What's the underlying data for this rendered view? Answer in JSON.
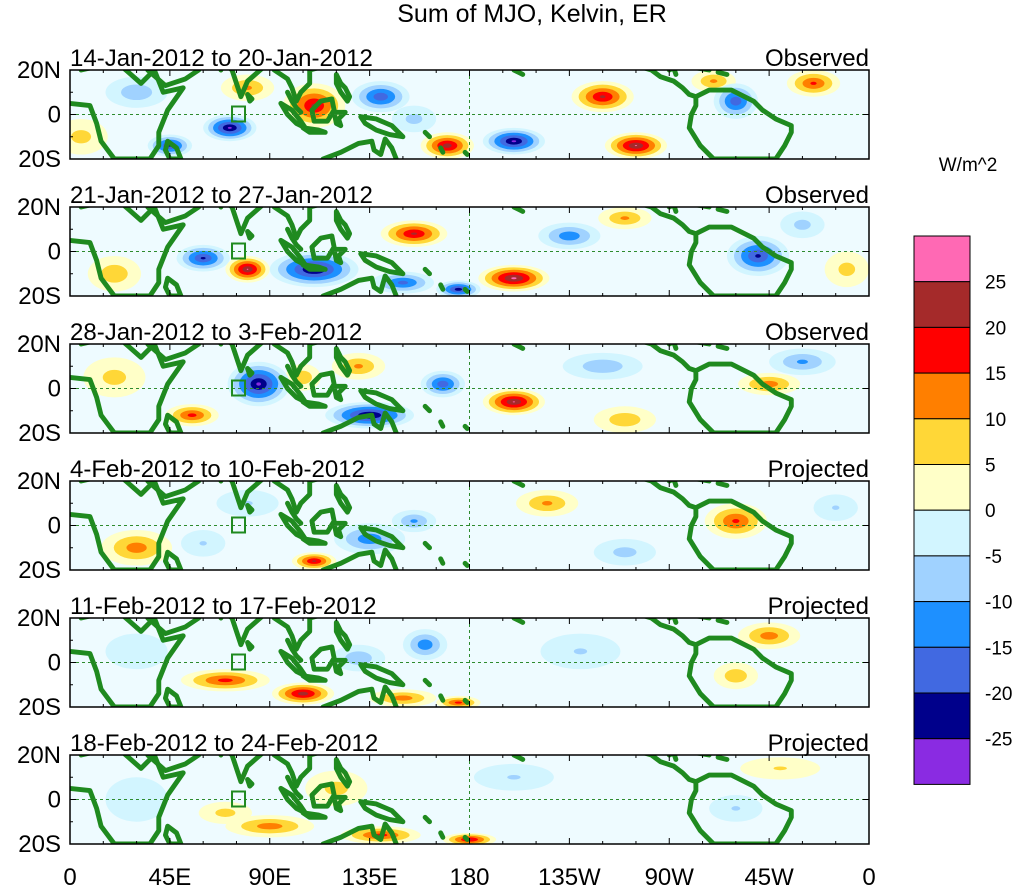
{
  "title": "Sum of MJO, Kelvin, ER",
  "units": "W/m^2",
  "lat_labels": [
    "20N",
    "0",
    "20S"
  ],
  "lon_labels": [
    "0",
    "45E",
    "90E",
    "135E",
    "180",
    "135W",
    "90W",
    "45W",
    "0"
  ],
  "panels": [
    {
      "dates": "14-Jan-2012 to 20-Jan-2012",
      "kind": "Observed"
    },
    {
      "dates": "21-Jan-2012 to 27-Jan-2012",
      "kind": "Observed"
    },
    {
      "dates": "28-Jan-2012 to 3-Feb-2012",
      "kind": "Observed"
    },
    {
      "dates": "4-Feb-2012 to 10-Feb-2012",
      "kind": "Projected"
    },
    {
      "dates": "11-Feb-2012 to 17-Feb-2012",
      "kind": "Projected"
    },
    {
      "dates": "18-Feb-2012 to 24-Feb-2012",
      "kind": "Projected"
    }
  ],
  "colorbar": {
    "levels": [
      "25",
      "20",
      "15",
      "10",
      "5",
      "0",
      "-5",
      "-10",
      "-15",
      "-20",
      "-25"
    ],
    "colors": [
      "#ff69b4",
      "#a52a2a",
      "#ff0000",
      "#ff7f00",
      "#ffd737",
      "#ffffc8",
      "#d2f5ff",
      "#a0d2ff",
      "#1e90ff",
      "#4169e1",
      "#00008b",
      "#8a2be2"
    ]
  },
  "map_style": {
    "land_color": "#1f8a1f",
    "equator_color": "#2e8b2e",
    "dateline_color": "#2e8b2e"
  },
  "blobs": [
    [
      {
        "lon": 240,
        "lat": 8,
        "sx": 14,
        "sy": 7,
        "v": 22
      },
      {
        "lon": 255,
        "lat": -14,
        "sx": 14,
        "sy": 6,
        "v": 26
      },
      {
        "lon": 200,
        "lat": -12,
        "sx": 14,
        "sy": 6,
        "v": -27
      },
      {
        "lon": 170,
        "lat": -14,
        "sx": 12,
        "sy": 6,
        "v": 24
      },
      {
        "lon": 140,
        "lat": 8,
        "sx": 13,
        "sy": 7,
        "v": -20
      },
      {
        "lon": 110,
        "lat": 4,
        "sx": 14,
        "sy": 10,
        "v": 22
      },
      {
        "lon": 72,
        "lat": -6,
        "sx": 12,
        "sy": 6,
        "v": -27
      },
      {
        "lon": 45,
        "lat": -14,
        "sx": 10,
        "sy": 5,
        "v": -22
      },
      {
        "lon": 80,
        "lat": 12,
        "sx": 12,
        "sy": 6,
        "v": 12
      },
      {
        "lon": 30,
        "lat": 10,
        "sx": 14,
        "sy": 7,
        "v": -10
      },
      {
        "lon": 300,
        "lat": 6,
        "sx": 10,
        "sy": 8,
        "v": -20
      },
      {
        "lon": 335,
        "lat": 14,
        "sx": 12,
        "sy": 6,
        "v": 17
      },
      {
        "lon": 290,
        "lat": 15,
        "sx": 10,
        "sy": 5,
        "v": 12
      },
      {
        "lon": 155,
        "lat": -2,
        "sx": 10,
        "sy": 6,
        "v": -8
      },
      {
        "lon": 5,
        "lat": -10,
        "sx": 12,
        "sy": 8,
        "v": 8
      }
    ],
    [
      {
        "lon": 110,
        "lat": -8,
        "sx": 20,
        "sy": 8,
        "v": -27
      },
      {
        "lon": 155,
        "lat": 8,
        "sx": 15,
        "sy": 6,
        "v": 22
      },
      {
        "lon": 200,
        "lat": -12,
        "sx": 16,
        "sy": 6,
        "v": 27
      },
      {
        "lon": 80,
        "lat": -8,
        "sx": 10,
        "sy": 6,
        "v": 26
      },
      {
        "lon": 60,
        "lat": -3,
        "sx": 12,
        "sy": 6,
        "v": -22
      },
      {
        "lon": 150,
        "lat": -14,
        "sx": 14,
        "sy": 5,
        "v": -18
      },
      {
        "lon": 175,
        "lat": -17,
        "sx": 10,
        "sy": 4,
        "v": -24
      },
      {
        "lon": 310,
        "lat": -2,
        "sx": 14,
        "sy": 9,
        "v": -22
      },
      {
        "lon": 225,
        "lat": 7,
        "sx": 14,
        "sy": 6,
        "v": -15
      },
      {
        "lon": 250,
        "lat": 15,
        "sx": 12,
        "sy": 5,
        "v": 12
      },
      {
        "lon": 20,
        "lat": -10,
        "sx": 12,
        "sy": 8,
        "v": 10
      },
      {
        "lon": 330,
        "lat": 12,
        "sx": 10,
        "sy": 6,
        "v": -8
      },
      {
        "lon": 350,
        "lat": -8,
        "sx": 10,
        "sy": 8,
        "v": 8
      }
    ],
    [
      {
        "lon": 85,
        "lat": 2,
        "sx": 14,
        "sy": 10,
        "v": -27
      },
      {
        "lon": 135,
        "lat": -12,
        "sx": 20,
        "sy": 6,
        "v": -27
      },
      {
        "lon": 200,
        "lat": -6,
        "sx": 14,
        "sy": 6,
        "v": 26
      },
      {
        "lon": 55,
        "lat": -12,
        "sx": 12,
        "sy": 5,
        "v": 18
      },
      {
        "lon": 168,
        "lat": 2,
        "sx": 10,
        "sy": 6,
        "v": -20
      },
      {
        "lon": 130,
        "lat": 10,
        "sx": 12,
        "sy": 6,
        "v": 12
      },
      {
        "lon": 240,
        "lat": 10,
        "sx": 18,
        "sy": 6,
        "v": -10
      },
      {
        "lon": 315,
        "lat": 2,
        "sx": 14,
        "sy": 5,
        "v": 14
      },
      {
        "lon": 330,
        "lat": 12,
        "sx": 15,
        "sy": 6,
        "v": -12
      },
      {
        "lon": 20,
        "lat": 5,
        "sx": 14,
        "sy": 9,
        "v": 8
      },
      {
        "lon": 250,
        "lat": -14,
        "sx": 14,
        "sy": 6,
        "v": 10
      },
      {
        "lon": 105,
        "lat": 5,
        "sx": 8,
        "sy": 6,
        "v": 10
      }
    ],
    [
      {
        "lon": 30,
        "lat": -10,
        "sx": 16,
        "sy": 8,
        "v": 14
      },
      {
        "lon": 110,
        "lat": -16,
        "sx": 10,
        "sy": 4,
        "v": 22
      },
      {
        "lon": 135,
        "lat": -6,
        "sx": 16,
        "sy": 7,
        "v": -15
      },
      {
        "lon": 155,
        "lat": 2,
        "sx": 10,
        "sy": 5,
        "v": -12
      },
      {
        "lon": 215,
        "lat": 10,
        "sx": 14,
        "sy": 6,
        "v": 12
      },
      {
        "lon": 300,
        "lat": 2,
        "sx": 14,
        "sy": 8,
        "v": 17
      },
      {
        "lon": 250,
        "lat": -12,
        "sx": 14,
        "sy": 6,
        "v": -8
      },
      {
        "lon": 80,
        "lat": 10,
        "sx": 14,
        "sy": 6,
        "v": -6
      },
      {
        "lon": 345,
        "lat": 8,
        "sx": 10,
        "sy": 6,
        "v": -6
      },
      {
        "lon": 60,
        "lat": -8,
        "sx": 10,
        "sy": 6,
        "v": -6
      }
    ],
    [
      {
        "lon": 70,
        "lat": -8,
        "sx": 20,
        "sy": 5,
        "v": 18
      },
      {
        "lon": 105,
        "lat": -14,
        "sx": 14,
        "sy": 5,
        "v": 24
      },
      {
        "lon": 150,
        "lat": -16,
        "sx": 15,
        "sy": 4,
        "v": 14
      },
      {
        "lon": 175,
        "lat": -18,
        "sx": 10,
        "sy": 3,
        "v": 18
      },
      {
        "lon": 160,
        "lat": 8,
        "sx": 10,
        "sy": 7,
        "v": -15
      },
      {
        "lon": 130,
        "lat": 2,
        "sx": 12,
        "sy": 6,
        "v": -10
      },
      {
        "lon": 315,
        "lat": 12,
        "sx": 14,
        "sy": 6,
        "v": 14
      },
      {
        "lon": 300,
        "lat": -6,
        "sx": 10,
        "sy": 6,
        "v": 10
      },
      {
        "lon": 230,
        "lat": 5,
        "sx": 18,
        "sy": 8,
        "v": -6
      },
      {
        "lon": 30,
        "lat": 5,
        "sx": 14,
        "sy": 8,
        "v": -5
      }
    ],
    [
      {
        "lon": 90,
        "lat": -12,
        "sx": 20,
        "sy": 5,
        "v": 14
      },
      {
        "lon": 140,
        "lat": -16,
        "sx": 18,
        "sy": 4,
        "v": 18
      },
      {
        "lon": 180,
        "lat": -18,
        "sx": 12,
        "sy": 3,
        "v": 22
      },
      {
        "lon": 70,
        "lat": -6,
        "sx": 12,
        "sy": 5,
        "v": 8
      },
      {
        "lon": 120,
        "lat": 5,
        "sx": 14,
        "sy": 8,
        "v": 8
      },
      {
        "lon": 200,
        "lat": 10,
        "sx": 18,
        "sy": 6,
        "v": -6
      },
      {
        "lon": 320,
        "lat": 14,
        "sx": 18,
        "sy": 5,
        "v": 6
      },
      {
        "lon": 300,
        "lat": -4,
        "sx": 12,
        "sy": 6,
        "v": -6
      },
      {
        "lon": 30,
        "lat": 0,
        "sx": 14,
        "sy": 10,
        "v": -5
      }
    ]
  ]
}
